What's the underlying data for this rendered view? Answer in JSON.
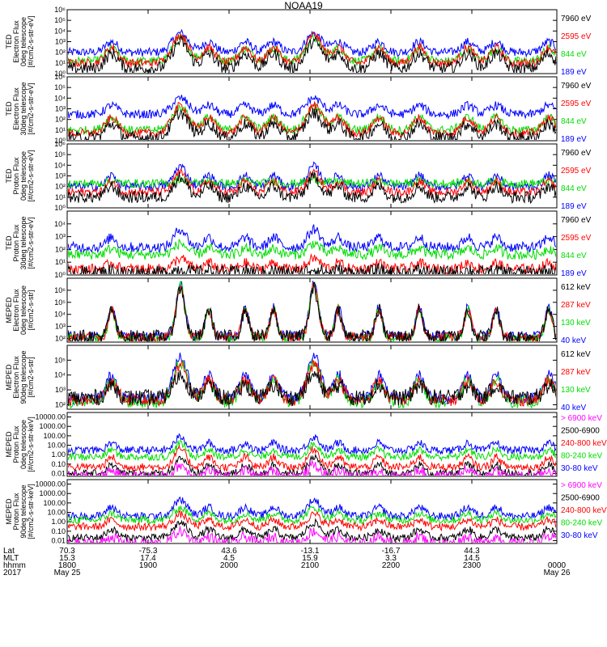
{
  "title": "NOAA19",
  "colors": {
    "black": "#000000",
    "blue": "#0000ff",
    "red": "#ff0000",
    "green": "#00dd00",
    "magenta": "#ff00ff"
  },
  "chart_data": [
    {
      "type": "line",
      "ylabel": [
        "TED",
        "Electron Flux",
        "0deg telescope",
        "[#/cm2-s-str-eV]"
      ],
      "scale": "log",
      "ylim": [
        1,
        1000000
      ],
      "ticks": [
        {
          "v": 1,
          "label": "10⁰"
        },
        {
          "v": 10,
          "label": "10¹"
        },
        {
          "v": 100,
          "label": "10²"
        },
        {
          "v": 1000,
          "label": "10³"
        },
        {
          "v": 10000,
          "label": "10⁴"
        },
        {
          "v": 100000,
          "label": "10⁵"
        },
        {
          "v": 1000000,
          "label": "10⁶"
        }
      ],
      "series": [
        {
          "name": "7960 eV",
          "color": "black"
        },
        {
          "name": "2595 eV",
          "color": "red"
        },
        {
          "name": "844 eV",
          "color": "green"
        },
        {
          "name": "189 eV",
          "color": "blue"
        }
      ],
      "profile": {
        "peak": [
          1000,
          4000,
          2000,
          6000
        ],
        "bg": [
          3,
          10,
          15,
          100
        ],
        "spread": 1.2
      }
    },
    {
      "type": "line",
      "ylabel": [
        "TED",
        "Electron Flux",
        "30deg telescope",
        "[#/cm2-s-str-eV]"
      ],
      "scale": "log",
      "ylim": [
        1,
        1000000
      ],
      "ticks": [
        {
          "v": 1,
          "label": "10⁰"
        },
        {
          "v": 10,
          "label": "10¹"
        },
        {
          "v": 100,
          "label": "10²"
        },
        {
          "v": 1000,
          "label": "10³"
        },
        {
          "v": 10000,
          "label": "10⁴"
        },
        {
          "v": 100000,
          "label": "10⁵"
        },
        {
          "v": 1000000,
          "label": "10⁶"
        }
      ],
      "series": [
        {
          "name": "7960 eV",
          "color": "black"
        },
        {
          "name": "2595 eV",
          "color": "red"
        },
        {
          "name": "844 eV",
          "color": "green"
        },
        {
          "name": "189 eV",
          "color": "blue"
        }
      ],
      "profile": {
        "peak": [
          400,
          2000,
          1500,
          10000
        ],
        "bg": [
          2,
          5,
          10,
          300
        ],
        "spread": 1.2
      }
    },
    {
      "type": "line",
      "ylabel": [
        "TED",
        "Proton Flux",
        "0deg telescope",
        "[#/cm2-s-str-eV]"
      ],
      "scale": "log",
      "ylim": [
        1,
        1000000
      ],
      "ticks": [
        {
          "v": 1,
          "label": "10⁰"
        },
        {
          "v": 10,
          "label": "10¹"
        },
        {
          "v": 100,
          "label": "10²"
        },
        {
          "v": 1000,
          "label": "10³"
        },
        {
          "v": 10000,
          "label": "10⁴"
        },
        {
          "v": 100000,
          "label": "10⁵"
        },
        {
          "v": 1000000,
          "label": "10⁶"
        }
      ],
      "series": [
        {
          "name": "7960 eV",
          "color": "black"
        },
        {
          "name": "2595 eV",
          "color": "red"
        },
        {
          "name": "844 eV",
          "color": "green"
        },
        {
          "name": "189 eV",
          "color": "blue"
        }
      ],
      "profile": {
        "peak": [
          800,
          2000,
          500,
          8000
        ],
        "bg": [
          10,
          30,
          200,
          100
        ],
        "spread": 0.8
      }
    },
    {
      "type": "line",
      "ylabel": [
        "TED",
        "Proton Flux",
        "30deg telescope",
        "[#/cm2-s-str-eV]"
      ],
      "scale": "log",
      "ylim": [
        1,
        100000
      ],
      "ticks": [
        {
          "v": 1,
          "label": "10⁰"
        },
        {
          "v": 10,
          "label": "10¹"
        },
        {
          "v": 100,
          "label": "10²"
        },
        {
          "v": 1000,
          "label": "10³"
        },
        {
          "v": 10000,
          "label": "10⁴"
        }
      ],
      "series": [
        {
          "name": "7960 eV",
          "color": "black"
        },
        {
          "name": "2595 eV",
          "color": "red"
        },
        {
          "name": "844 eV",
          "color": "green"
        },
        {
          "name": "189 eV",
          "color": "blue"
        }
      ],
      "profile": {
        "peak": [
          3,
          20,
          300,
          4000
        ],
        "bg": [
          1.5,
          3,
          40,
          150
        ],
        "spread": 0.7
      }
    },
    {
      "type": "line",
      "ylabel": [
        "MEPED",
        "Electron Flux",
        "0deg telescope",
        "[#/cm2-s-str]"
      ],
      "scale": "log",
      "ylim": [
        50,
        10000000
      ],
      "ticks": [
        {
          "v": 100,
          "label": "10²"
        },
        {
          "v": 1000,
          "label": "10³"
        },
        {
          "v": 10000,
          "label": "10⁴"
        },
        {
          "v": 100000,
          "label": "10⁵"
        },
        {
          "v": 1000000,
          "label": "10⁶"
        }
      ],
      "series": [
        {
          "name": "612 keV",
          "color": "black"
        },
        {
          "name": "287 keV",
          "color": "red"
        },
        {
          "name": "130 keV",
          "color": "green"
        },
        {
          "name": "40 keV",
          "color": "blue"
        }
      ],
      "profile": {
        "peak": [
          1500000,
          2000000,
          3000000,
          4000000
        ],
        "bg": [
          150,
          130,
          110,
          160
        ],
        "spread": 0.35
      }
    },
    {
      "type": "line",
      "ylabel": [
        "MEPED",
        "Electron Flux",
        "90deg telescope",
        "[#/cm2-s-str]"
      ],
      "scale": "log",
      "ylim": [
        50,
        1000000
      ],
      "ticks": [
        {
          "v": 100,
          "label": "10²"
        },
        {
          "v": 1000,
          "label": "10³"
        },
        {
          "v": 10000,
          "label": "10⁴"
        },
        {
          "v": 100000,
          "label": "10⁵"
        }
      ],
      "series": [
        {
          "name": "612 keV",
          "color": "black"
        },
        {
          "name": "287 keV",
          "color": "red"
        },
        {
          "name": "130 keV",
          "color": "green"
        },
        {
          "name": "40 keV",
          "color": "blue"
        }
      ],
      "profile": {
        "peak": [
          10000,
          50000,
          70000,
          200000
        ],
        "bg": [
          300,
          200,
          150,
          250
        ],
        "spread": 0.9
      }
    },
    {
      "type": "line",
      "ylabel": [
        "MEPED",
        "Proton Flux",
        "0deg telescope",
        "[#/cm2-s-str-keV]"
      ],
      "scale": "log",
      "ylim": [
        0.005,
        30000
      ],
      "ticks": [
        {
          "v": 0.01,
          "label": "0.01"
        },
        {
          "v": 0.1,
          "label": "0.10"
        },
        {
          "v": 1,
          "label": "1.00"
        },
        {
          "v": 10,
          "label": "10.00"
        },
        {
          "v": 100,
          "label": "100.00"
        },
        {
          "v": 1000,
          "label": "1000.00"
        },
        {
          "v": 10000,
          "label": "10000.00"
        }
      ],
      "series": [
        {
          "name": "> 6900 keV",
          "color": "magenta"
        },
        {
          "name": "2500-6900",
          "color": "black"
        },
        {
          "name": "240-800 keV",
          "color": "red"
        },
        {
          "name": "80-240 keV",
          "color": "green"
        },
        {
          "name": "30-80 keV",
          "color": "blue"
        }
      ],
      "profile": {
        "peak": [
          0.08,
          0.5,
          4,
          15,
          80
        ],
        "bg": [
          0.005,
          0.01,
          0.05,
          0.6,
          3
        ],
        "spread": 0.6
      }
    },
    {
      "type": "line",
      "ylabel": [
        "MEPED",
        "Proton Flux",
        "90deg telescope",
        "[#/cm2-s-str-keV]"
      ],
      "scale": "log",
      "ylim": [
        0.005,
        30000
      ],
      "ticks": [
        {
          "v": 0.01,
          "label": "0.01"
        },
        {
          "v": 0.1,
          "label": "0.10"
        },
        {
          "v": 1,
          "label": "1.00"
        },
        {
          "v": 10,
          "label": "10.00"
        },
        {
          "v": 100,
          "label": "100.00"
        },
        {
          "v": 1000,
          "label": "1000.00"
        },
        {
          "v": 10000,
          "label": "10000.00"
        }
      ],
      "series": [
        {
          "name": "> 6900 keV",
          "color": "magenta"
        },
        {
          "name": "2500-6900",
          "color": "black"
        },
        {
          "name": "240-800 keV",
          "color": "red"
        },
        {
          "name": "80-240 keV",
          "color": "green"
        },
        {
          "name": "30-80 keV",
          "color": "blue"
        }
      ],
      "profile": {
        "peak": [
          0.1,
          0.8,
          6,
          30,
          200
        ],
        "bg": [
          0.005,
          0.02,
          0.3,
          1.5,
          4
        ],
        "spread": 0.9
      }
    }
  ],
  "time_axis": {
    "range_hours": [
      18.0,
      24.05
    ],
    "major": [
      19,
      20,
      21,
      22,
      23
    ],
    "row_labels": [
      "Lat",
      "MLT",
      "hhmm",
      "2017"
    ],
    "columns": [
      {
        "t": 18.0,
        "lat": "70.3",
        "mlt": "15.3",
        "hhmm": "1800",
        "date": "May 25"
      },
      {
        "t": 19.0,
        "lat": "-75.3",
        "mlt": "17.4",
        "hhmm": "1900",
        "date": ""
      },
      {
        "t": 20.0,
        "lat": "43.6",
        "mlt": "4.5",
        "hhmm": "2000",
        "date": ""
      },
      {
        "t": 21.0,
        "lat": "-13.1",
        "mlt": "15.9",
        "hhmm": "2100",
        "date": ""
      },
      {
        "t": 22.0,
        "lat": "-16.7",
        "mlt": "3.3",
        "hhmm": "2200",
        "date": ""
      },
      {
        "t": 23.0,
        "lat": "44.3",
        "mlt": "14.5",
        "hhmm": "2300",
        "date": ""
      },
      {
        "t": 24.05,
        "lat": "",
        "mlt": "",
        "hhmm": "0000",
        "date": "May 26"
      }
    ]
  },
  "events": [
    {
      "t": 18.55,
      "kind": "polar"
    },
    {
      "t": 19.4,
      "kind": "peak"
    },
    {
      "t": 19.75,
      "kind": "polar"
    },
    {
      "t": 20.2,
      "kind": "polar"
    },
    {
      "t": 20.55,
      "kind": "polar"
    },
    {
      "t": 21.05,
      "kind": "peak"
    },
    {
      "t": 21.35,
      "kind": "polar"
    },
    {
      "t": 21.85,
      "kind": "polar"
    },
    {
      "t": 22.35,
      "kind": "polar"
    },
    {
      "t": 22.95,
      "kind": "polar"
    },
    {
      "t": 23.3,
      "kind": "polar"
    },
    {
      "t": 23.95,
      "kind": "polar"
    }
  ]
}
